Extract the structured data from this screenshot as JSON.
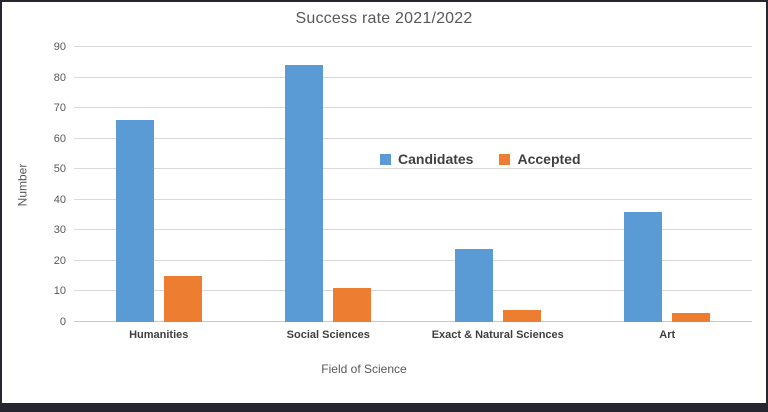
{
  "window": {
    "frame_color": "#26262f",
    "background_color": "#ffffff"
  },
  "chart_data": {
    "type": "bar",
    "title": "Success rate 2021/2022",
    "xlabel": "Field of Science",
    "ylabel": "Number",
    "categories": [
      "Humanities",
      "Social Sciences",
      "Exact & Natural Sciences",
      "Art"
    ],
    "series": [
      {
        "name": "Candidates",
        "color": "#5B9BD5",
        "values": [
          66,
          84,
          24,
          36
        ]
      },
      {
        "name": "Accepted",
        "color": "#ED7D31",
        "values": [
          15,
          11,
          4,
          3
        ]
      }
    ],
    "ylim": [
      0,
      90
    ],
    "ytick_step": 10,
    "yticks": [
      0,
      10,
      20,
      30,
      40,
      50,
      60,
      70,
      80,
      90
    ],
    "grid": true,
    "legend_position": "floating-center",
    "title_color": "#595959",
    "axis_text_color": "#595959",
    "category_label_color": "#404040",
    "gridline_color": "#d9d9d9"
  }
}
